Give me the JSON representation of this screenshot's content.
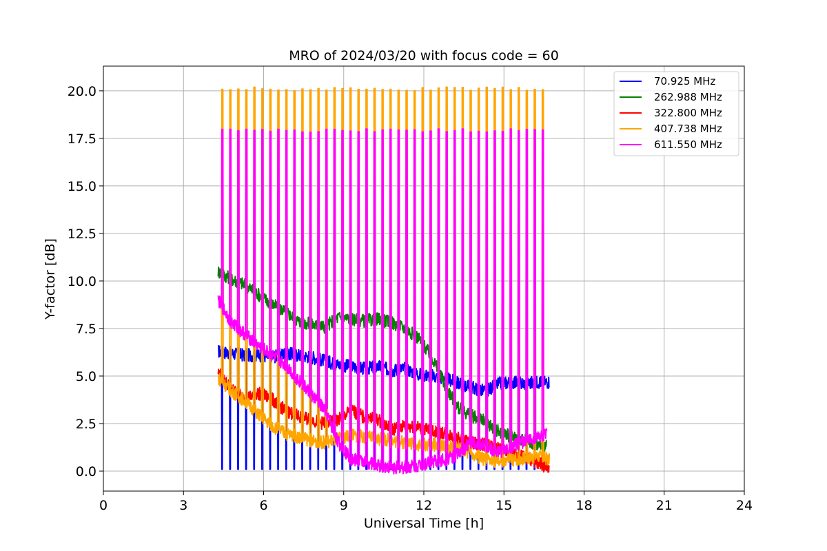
{
  "chart_data": {
    "type": "line",
    "title": "MRO of 2024/03/20 with focus code = 60",
    "xlabel": "Universal Time [h]",
    "ylabel": "Y-factor [dB]",
    "xlim": [
      0,
      24
    ],
    "ylim": [
      -1.05,
      21.3
    ],
    "xticks": [
      0,
      3,
      6,
      9,
      12,
      15,
      18,
      21,
      24
    ],
    "xtick_labels": [
      "0",
      "3",
      "6",
      "9",
      "12",
      "15",
      "18",
      "21",
      "24"
    ],
    "yticks": [
      0,
      2.5,
      5,
      7.5,
      10,
      12.5,
      15,
      17.5,
      20
    ],
    "ytick_labels": [
      "0.0",
      "2.5",
      "5.0",
      "7.5",
      "10.0",
      "12.5",
      "15.0",
      "17.5",
      "20.0"
    ],
    "grid": true,
    "legend_position": "top-right",
    "calibration_spike_times": [
      4.42,
      4.72,
      5.02,
      5.32,
      5.62,
      5.92,
      6.22,
      6.52,
      6.82,
      7.12,
      7.42,
      7.72,
      8.02,
      8.32,
      8.62,
      8.92,
      9.22,
      9.52,
      9.82,
      10.12,
      10.42,
      10.72,
      11.02,
      11.32,
      11.62,
      11.92,
      12.22,
      12.52,
      12.82,
      13.12,
      13.42,
      13.72,
      14.02,
      14.32,
      14.62,
      14.92,
      15.22,
      15.52,
      15.82,
      16.12,
      16.42
    ],
    "series": [
      {
        "name": "70.925 MHz",
        "color": "#0000ff",
        "x": [
          4.3,
          4.8,
          5.3,
          5.8,
          6.3,
          6.8,
          7.3,
          7.8,
          8.3,
          8.8,
          9.3,
          9.8,
          10.3,
          10.8,
          11.3,
          11.8,
          12.3,
          12.8,
          13.3,
          13.8,
          14.3,
          14.8,
          15.3,
          15.8,
          16.3,
          16.7
        ],
        "y": [
          6.3,
          6.2,
          6.1,
          6.1,
          6.0,
          6.2,
          6.1,
          6.0,
          5.8,
          5.6,
          5.5,
          5.4,
          5.5,
          5.3,
          5.4,
          5.1,
          5.0,
          4.9,
          4.6,
          4.4,
          4.2,
          4.6,
          4.7,
          4.6,
          4.7,
          4.7
        ],
        "spike_low": 0.1,
        "spike_until": 16.2
      },
      {
        "name": "262.988 MHz",
        "color": "#008000",
        "x": [
          4.3,
          4.8,
          5.3,
          5.8,
          6.3,
          6.8,
          7.3,
          7.8,
          8.3,
          8.8,
          9.3,
          9.8,
          10.3,
          10.8,
          11.3,
          11.8,
          12.3,
          12.8,
          13.3,
          13.8,
          14.3,
          14.8,
          15.3,
          15.8,
          16.3,
          16.6
        ],
        "y": [
          10.5,
          10.1,
          9.8,
          9.3,
          8.8,
          8.4,
          7.9,
          7.7,
          7.6,
          8.1,
          8.0,
          7.9,
          8.0,
          7.8,
          7.5,
          7.0,
          6.0,
          4.5,
          3.3,
          2.9,
          2.6,
          2.1,
          1.8,
          1.6,
          1.4,
          1.3
        ]
      },
      {
        "name": "322.800 MHz",
        "color": "#ff0000",
        "x": [
          4.3,
          4.8,
          5.3,
          5.8,
          6.3,
          6.8,
          7.3,
          7.8,
          8.3,
          8.8,
          9.3,
          9.8,
          10.3,
          10.8,
          11.3,
          11.8,
          12.3,
          12.8,
          13.3,
          13.8,
          14.3,
          14.8,
          15.3,
          15.8,
          16.3,
          16.7
        ],
        "y": [
          5.2,
          4.3,
          3.8,
          4.1,
          3.8,
          3.2,
          2.9,
          2.7,
          2.5,
          2.7,
          3.2,
          2.8,
          2.7,
          2.2,
          2.4,
          2.3,
          2.1,
          2.0,
          1.7,
          1.5,
          1.4,
          1.2,
          0.9,
          0.7,
          0.4,
          0.2
        ]
      },
      {
        "name": "407.738 MHz",
        "color": "#ffa500",
        "x": [
          4.3,
          4.8,
          5.3,
          5.8,
          6.3,
          6.8,
          7.3,
          7.8,
          8.3,
          8.8,
          9.3,
          9.8,
          10.3,
          10.8,
          11.3,
          11.8,
          12.3,
          12.8,
          13.3,
          13.8,
          14.3,
          14.8,
          15.3,
          15.8,
          16.3,
          16.7
        ],
        "y": [
          4.9,
          4.2,
          3.7,
          3.0,
          2.4,
          2.0,
          1.8,
          1.6,
          1.5,
          1.7,
          1.9,
          1.8,
          1.7,
          1.6,
          1.5,
          1.4,
          1.4,
          1.3,
          1.2,
          0.9,
          0.6,
          0.5,
          0.6,
          0.7,
          0.8,
          0.6
        ],
        "spike_high": 20.1
      },
      {
        "name": "611.550 MHz",
        "color": "#ff00ff",
        "x": [
          4.3,
          4.8,
          5.3,
          5.8,
          6.3,
          6.8,
          7.3,
          7.8,
          8.3,
          8.8,
          9.3,
          9.8,
          10.3,
          10.8,
          11.3,
          11.8,
          12.3,
          12.8,
          13.3,
          13.8,
          14.3,
          14.8,
          15.3,
          15.8,
          16.3,
          16.6
        ],
        "y": [
          9.0,
          7.8,
          7.2,
          6.6,
          6.1,
          5.6,
          4.8,
          4.0,
          3.2,
          1.5,
          0.6,
          0.5,
          0.3,
          0.2,
          0.2,
          0.3,
          0.5,
          0.6,
          0.9,
          1.6,
          1.3,
          1.0,
          1.3,
          1.6,
          1.8,
          1.9
        ],
        "spike_high": 17.9
      }
    ]
  }
}
